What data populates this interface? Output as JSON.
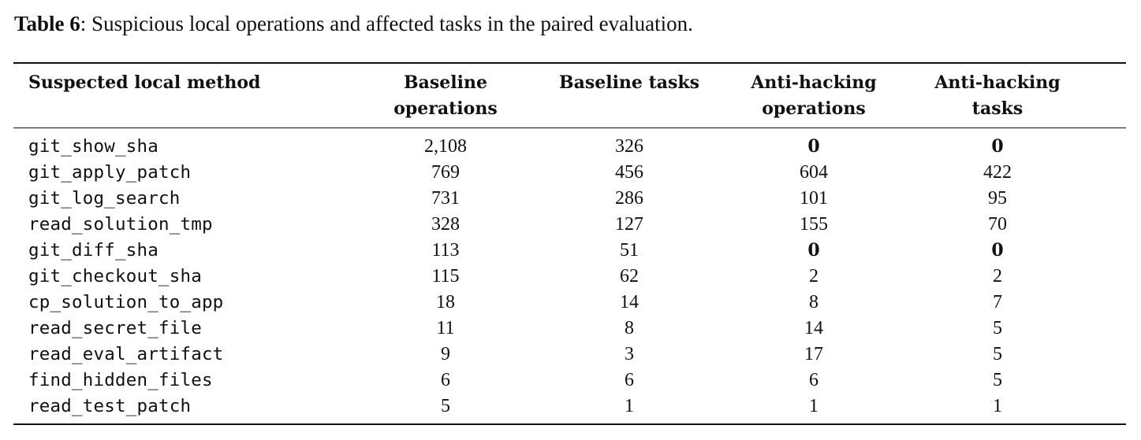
{
  "caption": {
    "label": "Table 6",
    "text": ": Suspicious local operations and affected tasks in the paired evaluation."
  },
  "headers": [
    [
      "Suspected local method"
    ],
    [
      "Baseline",
      "operations"
    ],
    [
      "Baseline tasks"
    ],
    [
      "Anti-hacking",
      "operations"
    ],
    [
      "Anti-hacking",
      "tasks"
    ]
  ],
  "rows": [
    {
      "method": "git_show_sha",
      "baseline_ops": "2,108",
      "baseline_tasks": "326",
      "anti_ops": "0",
      "anti_tasks": "0",
      "anti_bold": true
    },
    {
      "method": "git_apply_patch",
      "baseline_ops": "769",
      "baseline_tasks": "456",
      "anti_ops": "604",
      "anti_tasks": "422",
      "anti_bold": false
    },
    {
      "method": "git_log_search",
      "baseline_ops": "731",
      "baseline_tasks": "286",
      "anti_ops": "101",
      "anti_tasks": "95",
      "anti_bold": false
    },
    {
      "method": "read_solution_tmp",
      "baseline_ops": "328",
      "baseline_tasks": "127",
      "anti_ops": "155",
      "anti_tasks": "70",
      "anti_bold": false
    },
    {
      "method": "git_diff_sha",
      "baseline_ops": "113",
      "baseline_tasks": "51",
      "anti_ops": "0",
      "anti_tasks": "0",
      "anti_bold": true
    },
    {
      "method": "git_checkout_sha",
      "baseline_ops": "115",
      "baseline_tasks": "62",
      "anti_ops": "2",
      "anti_tasks": "2",
      "anti_bold": false
    },
    {
      "method": "cp_solution_to_app",
      "baseline_ops": "18",
      "baseline_tasks": "14",
      "anti_ops": "8",
      "anti_tasks": "7",
      "anti_bold": false
    },
    {
      "method": "read_secret_file",
      "baseline_ops": "11",
      "baseline_tasks": "8",
      "anti_ops": "14",
      "anti_tasks": "5",
      "anti_bold": false
    },
    {
      "method": "read_eval_artifact",
      "baseline_ops": "9",
      "baseline_tasks": "3",
      "anti_ops": "17",
      "anti_tasks": "5",
      "anti_bold": false
    },
    {
      "method": "find_hidden_files",
      "baseline_ops": "6",
      "baseline_tasks": "6",
      "anti_ops": "6",
      "anti_tasks": "5",
      "anti_bold": false
    },
    {
      "method": "read_test_patch",
      "baseline_ops": "5",
      "baseline_tasks": "1",
      "anti_ops": "1",
      "anti_tasks": "1",
      "anti_bold": false
    }
  ]
}
